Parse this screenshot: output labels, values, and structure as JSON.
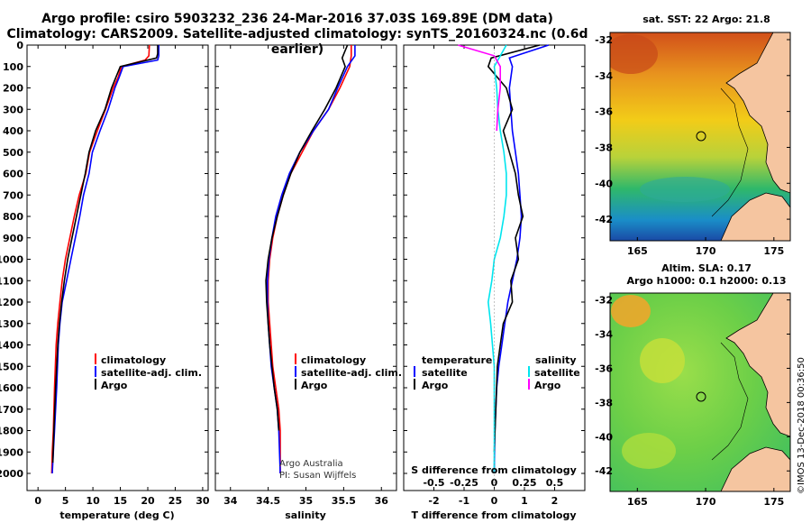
{
  "title_line1": "Argo profile: csiro 5903232_236 24-Mar-2016 37.03S 169.89E (DM data)",
  "title_line2": "Climatology: CARS2009. Satellite-adjusted climatology: synTS_20160324.nc (0.6d earlier)",
  "credit_line1": "Argo Australia",
  "credit_line2": "PI: Susan Wijffels",
  "map1_title": "sat. SST: 22 Argo: 21.8",
  "map2_title_line1": "Altim. SLA: 0.17",
  "map2_title_line2": "Argo h1000: 0.1 h2000: 0.13",
  "side_stamp": "©IMOS 13-Dec-2018 00:36:50",
  "colors": {
    "climatology": "#ff0000",
    "satellite": "#0000ff",
    "argo": "#000000",
    "sal_sat": "#00e5ee",
    "sal_argo": "#ff00ff",
    "land": "#f5c5a0"
  },
  "chart_data": [
    {
      "type": "line",
      "xlabel": "temperature (deg C)",
      "ylabel": "",
      "xlim": [
        -2,
        31
      ],
      "ylim": [
        2080,
        0
      ],
      "xticks": [
        "0",
        "5",
        "10",
        "15",
        "20",
        "25",
        "30"
      ],
      "yticks": [
        "0",
        "100",
        "200",
        "300",
        "400",
        "500",
        "600",
        "700",
        "800",
        "900",
        "1000",
        "1100",
        "1200",
        "1300",
        "1400",
        "1500",
        "1600",
        "1700",
        "1800",
        "1900",
        "2000"
      ],
      "legend": [
        "climatology",
        "satellite-adj. clim.",
        "Argo"
      ],
      "series": [
        {
          "name": "climatology",
          "color": "#ff0000",
          "x": [
            20.3,
            20.2,
            19.5,
            15.2,
            14.6,
            13.7,
            12.3,
            10.8,
            9.4,
            8.7,
            7.5,
            6.6,
            5.8,
            5.0,
            4.4,
            4.0,
            3.6,
            3.3,
            3.0,
            2.8,
            2.6,
            2.5
          ],
          "y": [
            0,
            50,
            70,
            100,
            150,
            200,
            300,
            400,
            500,
            600,
            700,
            800,
            900,
            1000,
            1100,
            1200,
            1300,
            1400,
            1600,
            1800,
            1900,
            2000
          ]
        },
        {
          "name": "satellite-adj. clim.",
          "color": "#0000ff",
          "x": [
            22.0,
            22.0,
            21.8,
            15.5,
            14.8,
            14.0,
            12.8,
            11.3,
            9.9,
            9.3,
            8.3,
            7.6,
            6.8,
            6.0,
            5.2,
            4.4,
            4.0,
            3.7,
            3.4,
            3.0,
            2.8,
            2.6
          ],
          "y": [
            0,
            50,
            70,
            100,
            150,
            200,
            300,
            400,
            500,
            600,
            700,
            800,
            900,
            1000,
            1100,
            1200,
            1300,
            1400,
            1600,
            1800,
            1900,
            2000
          ]
        },
        {
          "name": "Argo",
          "color": "#000000",
          "x": [
            21.8,
            21.8,
            21.6,
            15.0,
            14.2,
            13.4,
            12.2,
            10.5,
            9.3,
            8.6,
            7.8,
            7.0,
            6.2,
            5.4,
            4.8,
            4.3,
            3.9,
            3.6,
            3.2,
            2.9,
            2.7
          ],
          "y": [
            0,
            40,
            60,
            100,
            150,
            200,
            300,
            400,
            500,
            600,
            700,
            800,
            900,
            1000,
            1100,
            1200,
            1300,
            1400,
            1600,
            1800,
            1950
          ]
        }
      ]
    },
    {
      "type": "line",
      "xlabel": "salinity",
      "ylabel": "",
      "xlim": [
        33.8,
        36.2
      ],
      "ylim": [
        2080,
        0
      ],
      "xticks": [
        "34",
        "34.5",
        "35",
        "35.5",
        "36"
      ],
      "legend": [
        "climatology",
        "satellite-adj. clim.",
        "Argo"
      ],
      "series": [
        {
          "name": "climatology",
          "color": "#ff0000",
          "x": [
            35.6,
            35.6,
            35.58,
            35.45,
            35.3,
            35.1,
            34.95,
            34.8,
            34.7,
            34.62,
            34.56,
            34.52,
            34.5,
            34.5,
            34.52,
            34.54,
            34.56,
            34.6,
            34.64,
            34.66,
            34.66
          ],
          "y": [
            0,
            50,
            100,
            200,
            300,
            400,
            500,
            600,
            700,
            800,
            900,
            1000,
            1100,
            1200,
            1300,
            1400,
            1500,
            1600,
            1700,
            1800,
            2000
          ]
        },
        {
          "name": "satellite-adj. clim.",
          "color": "#0000ff",
          "x": [
            35.65,
            35.65,
            35.55,
            35.42,
            35.3,
            35.1,
            34.92,
            34.78,
            34.68,
            34.6,
            34.55,
            34.51,
            34.49,
            34.49,
            34.5,
            34.52,
            34.54,
            34.58,
            34.62,
            34.64,
            34.66
          ],
          "y": [
            0,
            50,
            100,
            200,
            300,
            400,
            500,
            600,
            700,
            800,
            900,
            1000,
            1100,
            1200,
            1300,
            1400,
            1500,
            1600,
            1700,
            1800,
            2000
          ]
        },
        {
          "name": "Argo",
          "color": "#000000",
          "x": [
            35.55,
            35.48,
            35.52,
            35.4,
            35.25,
            35.08,
            34.92,
            34.8,
            34.7,
            34.62,
            34.55,
            34.5,
            34.47,
            34.48,
            34.5,
            34.52,
            34.55,
            34.58,
            34.62,
            34.64
          ],
          "y": [
            0,
            60,
            100,
            200,
            300,
            400,
            500,
            600,
            700,
            800,
            900,
            1000,
            1100,
            1200,
            1300,
            1400,
            1500,
            1600,
            1700,
            1800
          ]
        }
      ]
    },
    {
      "type": "line",
      "xlabel": "T difference from climatology",
      "ylabel": "",
      "xlim": [
        -3,
        3
      ],
      "ylim": [
        2080,
        0
      ],
      "xticks": [
        "-2",
        "-1",
        "0",
        "1",
        "2"
      ],
      "secondary_xlabel": "S difference from climatology",
      "secondary_xticks": [
        "-0.5",
        "-0.25",
        "0",
        "0.25",
        "0.5"
      ],
      "legend_temperature": [
        "satellite",
        "Argo"
      ],
      "legend_salinity": [
        "satellite",
        "Argo"
      ],
      "series": [
        {
          "name": "temperature satellite",
          "color": "#0000ff",
          "x": [
            1.8,
            0.5,
            0.6,
            0.5,
            0.55,
            0.6,
            0.7,
            0.8,
            0.85,
            0.9,
            0.85,
            0.75,
            0.6,
            0.45,
            0.35,
            0.25,
            0.15,
            0.08,
            0.02,
            0.0
          ],
          "y": [
            0,
            60,
            100,
            200,
            300,
            400,
            500,
            600,
            700,
            800,
            900,
            1000,
            1100,
            1200,
            1300,
            1400,
            1500,
            1600,
            1800,
            2000
          ]
        },
        {
          "name": "temperature Argo",
          "color": "#000000",
          "x": [
            1.5,
            -0.1,
            -0.2,
            0.4,
            0.6,
            0.3,
            0.5,
            0.7,
            0.8,
            0.95,
            0.7,
            0.8,
            0.55,
            0.6,
            0.3,
            0.2,
            0.1,
            0.05,
            0.0
          ],
          "y": [
            0,
            60,
            100,
            200,
            300,
            400,
            500,
            600,
            700,
            800,
            900,
            1000,
            1100,
            1200,
            1300,
            1400,
            1500,
            1700,
            1900
          ]
        },
        {
          "name": "salinity satellite",
          "color": "#00e5ee",
          "x": [
            0.1,
            0.0,
            0.02,
            0.03,
            0.05,
            0.08,
            0.1,
            0.1,
            0.08,
            0.05,
            0.0,
            -0.02,
            -0.05,
            -0.03,
            0.0,
            0.0,
            0.0,
            0.0
          ],
          "y": [
            0,
            100,
            200,
            300,
            400,
            500,
            600,
            700,
            800,
            900,
            1000,
            1100,
            1200,
            1300,
            1500,
            1600,
            1800,
            2000
          ]
        },
        {
          "name": "salinity Argo",
          "color": "#ff00ff",
          "x": [
            -0.3,
            0.0,
            0.05,
            0.05,
            0.03,
            0.02
          ],
          "y": [
            0,
            50,
            100,
            200,
            300,
            400
          ]
        }
      ]
    }
  ],
  "map_axes": {
    "lon_ticks": [
      "165",
      "170",
      "175"
    ],
    "lat_ticks": [
      "-32",
      "-34",
      "-36",
      "-38",
      "-40",
      "-42"
    ]
  }
}
